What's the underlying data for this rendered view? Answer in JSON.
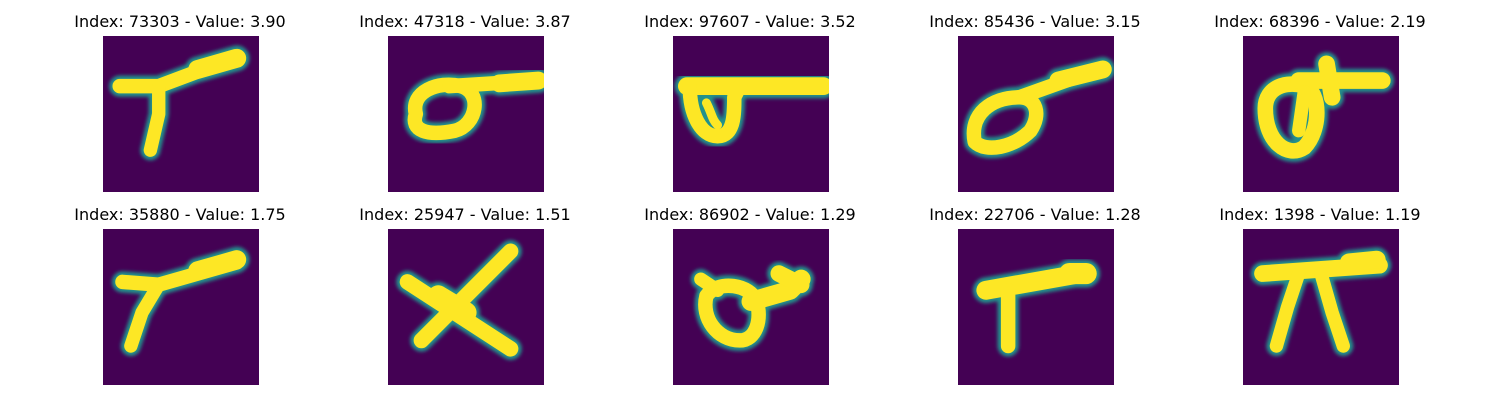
{
  "colors": {
    "background": "#440154",
    "mid": "#21918c",
    "stroke": "#fde725",
    "page": "#ffffff"
  },
  "panels": [
    {
      "title": "Index: 73303 - Value: 3.90",
      "glyph": "y-shape"
    },
    {
      "title": "Index: 47318 - Value: 3.87",
      "glyph": "loop-with-tail"
    },
    {
      "title": "Index: 97607 - Value: 3.52",
      "glyph": "bar-with-loop"
    },
    {
      "title": "Index: 85436 - Value: 3.15",
      "glyph": "tilted-loop-with-tail"
    },
    {
      "title": "Index: 68396 - Value: 2.19",
      "glyph": "loop-with-hook"
    },
    {
      "title": "Index: 35880 - Value: 1.75",
      "glyph": "y-shape"
    },
    {
      "title": "Index: 25947 - Value: 1.51",
      "glyph": "x-shape"
    },
    {
      "title": "Index: 86902 - Value: 1.29",
      "glyph": "blob-loop"
    },
    {
      "title": "Index: 22706 - Value: 1.28",
      "glyph": "t-shape"
    },
    {
      "title": "Index: 1398 - Value: 1.19",
      "glyph": "pi-shape"
    }
  ]
}
